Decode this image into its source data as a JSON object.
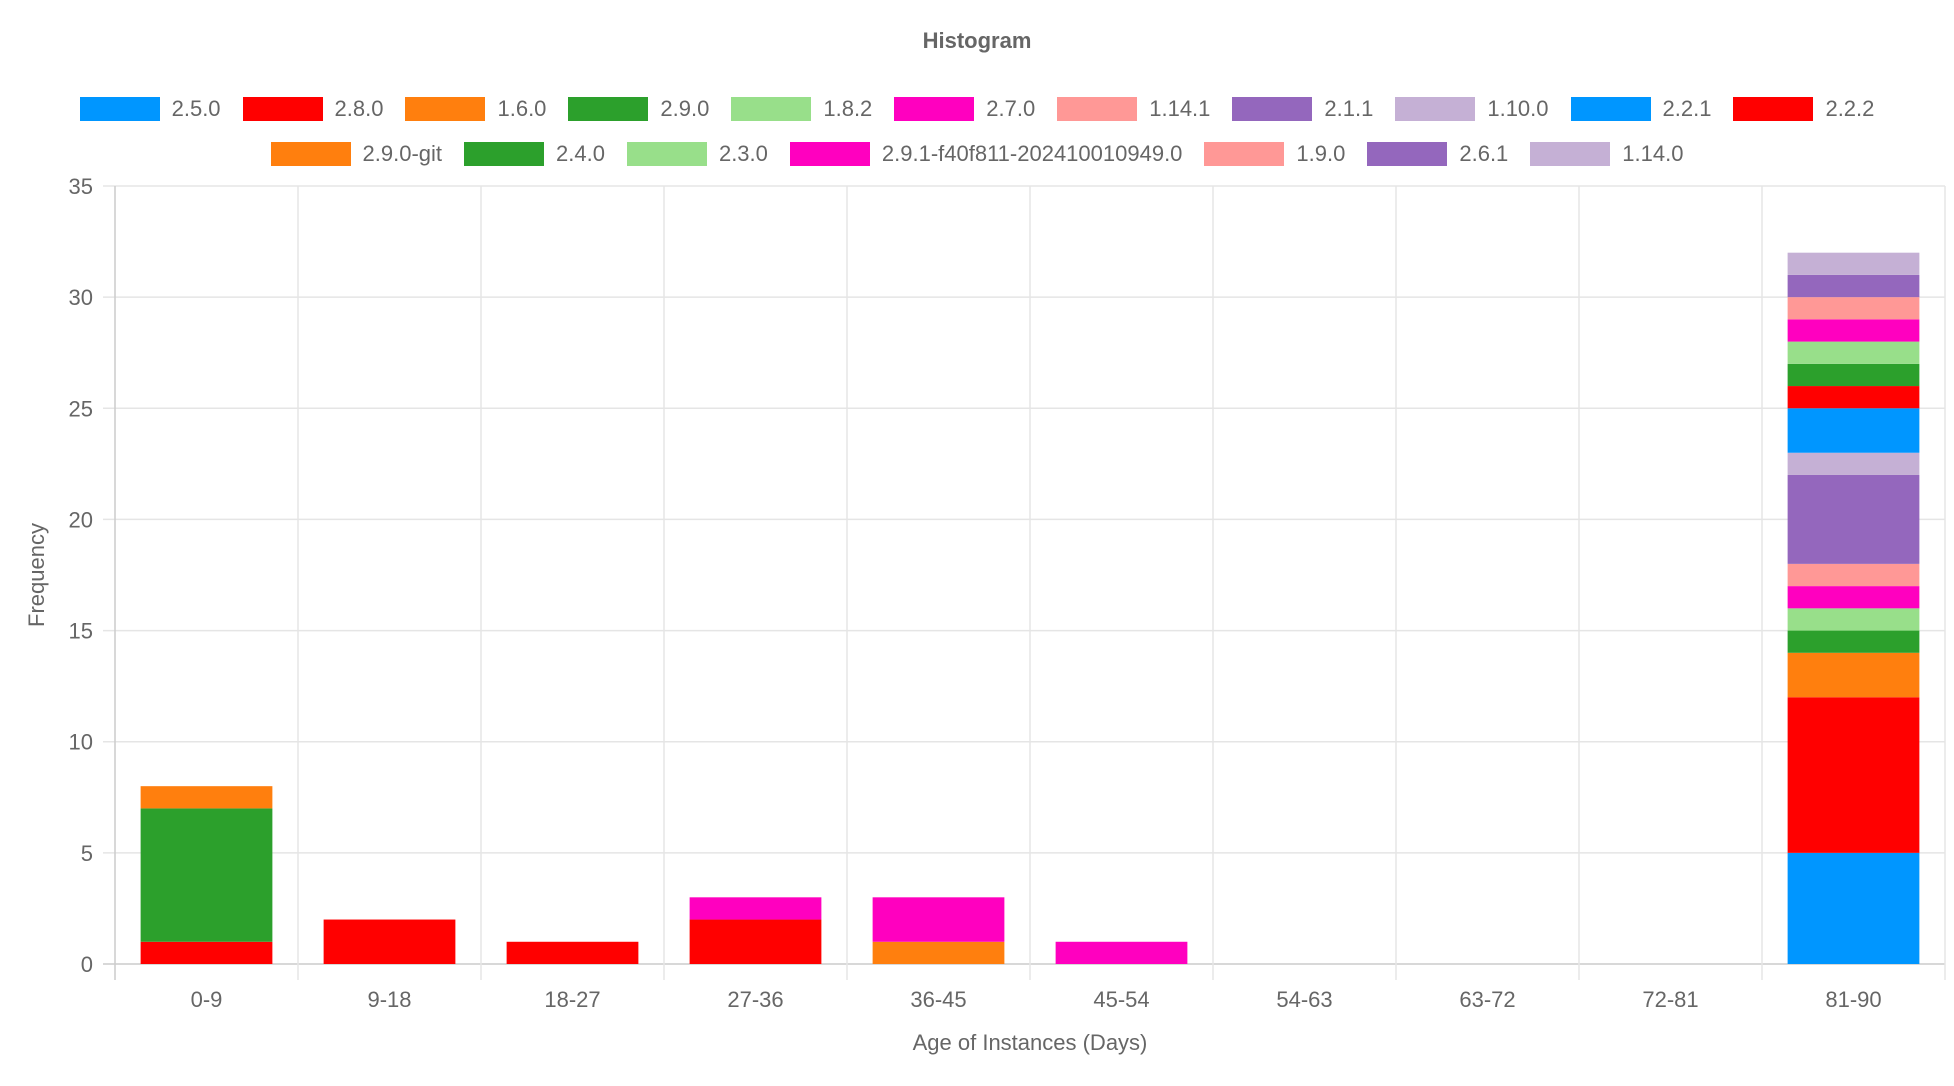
{
  "chart_data": {
    "type": "bar",
    "stacked": true,
    "title": "Histogram",
    "xlabel": "Age of Instances (Days)",
    "ylabel": "Frequency",
    "ylim": [
      0,
      35
    ],
    "yticks": [
      0,
      5,
      10,
      15,
      20,
      25,
      30,
      35
    ],
    "grid": true,
    "legend_position": "top",
    "categories": [
      "0-9",
      "9-18",
      "18-27",
      "27-36",
      "36-45",
      "45-54",
      "54-63",
      "63-72",
      "72-81",
      "81-90"
    ],
    "series": [
      {
        "name": "2.5.0",
        "color": "#0096ff",
        "values": [
          0,
          0,
          0,
          0,
          0,
          0,
          0,
          0,
          0,
          5
        ]
      },
      {
        "name": "2.8.0",
        "color": "#ff0000",
        "values": [
          1,
          2,
          1,
          2,
          0,
          0,
          0,
          0,
          0,
          7
        ]
      },
      {
        "name": "1.6.0",
        "color": "#ff7f0e",
        "values": [
          0,
          0,
          0,
          0,
          0,
          0,
          0,
          0,
          0,
          2
        ]
      },
      {
        "name": "2.9.0",
        "color": "#2ca02c",
        "values": [
          6,
          0,
          0,
          0,
          0,
          0,
          0,
          0,
          0,
          1
        ]
      },
      {
        "name": "1.8.2",
        "color": "#98df8a",
        "values": [
          0,
          0,
          0,
          0,
          0,
          0,
          0,
          0,
          0,
          1
        ]
      },
      {
        "name": "2.7.0",
        "color": "#ff00bf",
        "values": [
          0,
          0,
          0,
          0,
          0,
          0,
          0,
          0,
          0,
          1
        ]
      },
      {
        "name": "1.14.1",
        "color": "#ff9896",
        "values": [
          0,
          0,
          0,
          0,
          0,
          0,
          0,
          0,
          0,
          1
        ]
      },
      {
        "name": "2.1.1",
        "color": "#9467bd",
        "values": [
          0,
          0,
          0,
          0,
          0,
          0,
          0,
          0,
          0,
          4
        ]
      },
      {
        "name": "1.10.0",
        "color": "#c5b0d5",
        "values": [
          0,
          0,
          0,
          0,
          0,
          0,
          0,
          0,
          0,
          1
        ]
      },
      {
        "name": "2.2.1",
        "color": "#0096ff",
        "values": [
          0,
          0,
          0,
          0,
          0,
          0,
          0,
          0,
          0,
          2
        ]
      },
      {
        "name": "2.2.2",
        "color": "#ff0000",
        "values": [
          0,
          0,
          0,
          0,
          0,
          0,
          0,
          0,
          0,
          1
        ]
      },
      {
        "name": "2.9.0-git",
        "color": "#ff7f0e",
        "values": [
          1,
          0,
          0,
          0,
          1,
          0,
          0,
          0,
          0,
          0
        ]
      },
      {
        "name": "2.4.0",
        "color": "#2ca02c",
        "values": [
          0,
          0,
          0,
          0,
          0,
          0,
          0,
          0,
          0,
          1
        ]
      },
      {
        "name": "2.3.0",
        "color": "#98df8a",
        "values": [
          0,
          0,
          0,
          0,
          0,
          0,
          0,
          0,
          0,
          1
        ]
      },
      {
        "name": "2.9.1-f40f811-202410010949.0",
        "color": "#ff00bf",
        "values": [
          0,
          0,
          0,
          1,
          2,
          1,
          0,
          0,
          0,
          1
        ]
      },
      {
        "name": "1.9.0",
        "color": "#ff9896",
        "values": [
          0,
          0,
          0,
          0,
          0,
          0,
          0,
          0,
          0,
          1
        ]
      },
      {
        "name": "2.6.1",
        "color": "#9467bd",
        "values": [
          0,
          0,
          0,
          0,
          0,
          0,
          0,
          0,
          0,
          1
        ]
      },
      {
        "name": "1.14.0",
        "color": "#c5b0d5",
        "values": [
          0,
          0,
          0,
          0,
          0,
          0,
          0,
          0,
          0,
          1
        ]
      }
    ]
  }
}
